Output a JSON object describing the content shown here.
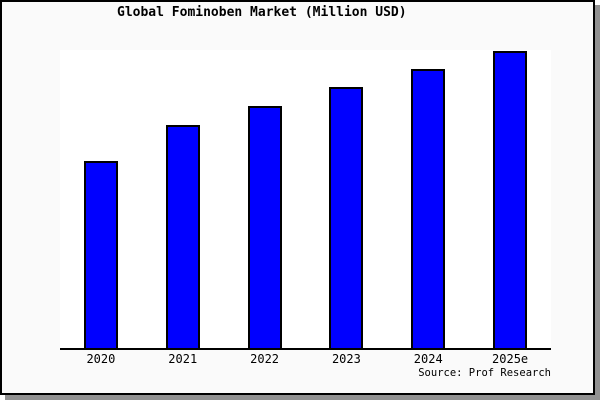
{
  "window": {
    "background_color": "#fafafa",
    "frame_border_color": "#000000",
    "shadow_color": "#919191",
    "plot_background_color": "#ffffff"
  },
  "title": "Global Fominoben Market (Million USD)",
  "source_caption": "Source: Prof Research",
  "chart_data": {
    "type": "bar",
    "title": "Global Fominoben Market (Million USD)",
    "categories": [
      "2020",
      "2021",
      "2022",
      "2023",
      "2024",
      "2025e"
    ],
    "values": [
      62.8,
      75.2,
      81.6,
      87.9,
      94.0,
      100
    ],
    "value_note": "y-axis has no tick labels; values are relative bar heights indexed to 2025e = 100",
    "xlabel": "",
    "ylabel": "",
    "ylim": [
      0,
      100
    ],
    "grid": false,
    "legend": null,
    "bar_color": "#0000ff",
    "bar_border_color": "#000000",
    "axis_line_color": "#000000",
    "annotation": "Source: Prof Research"
  }
}
